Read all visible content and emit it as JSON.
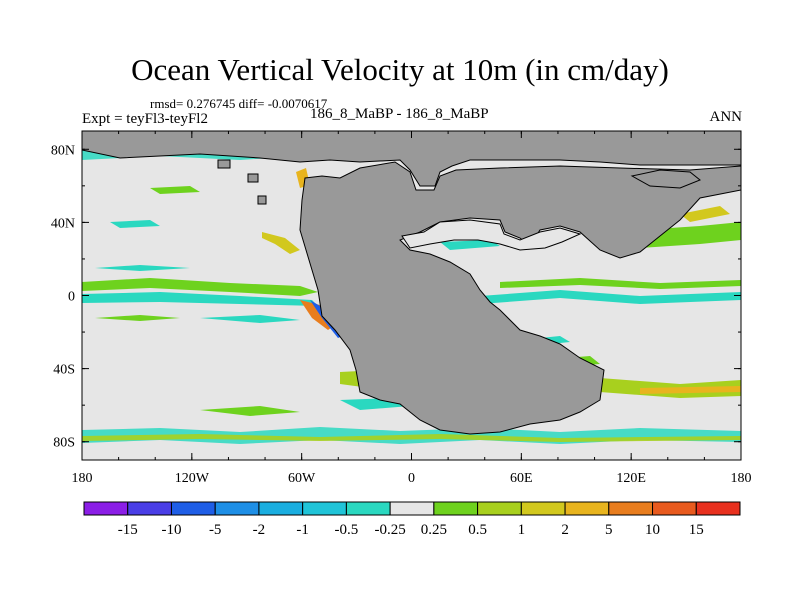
{
  "header": {
    "title": "Ocean Vertical Velocity at 10m (in cm/day)",
    "stats": "rmsd= 0.276745 diff= -0.0070617",
    "subtitle": "186_8_MaBP - 186_8_MaBP",
    "left_label": "Expt = teyFl3-teyFl2",
    "right_label": "ANN"
  },
  "map": {
    "x_ticks": [
      "180",
      "120W",
      "60W",
      "0",
      "60E",
      "120E",
      "180"
    ],
    "y_ticks": [
      "80N",
      "40N",
      "0",
      "40S",
      "80S"
    ],
    "land_color": "#999999",
    "background_color": "#e6e6e6"
  },
  "colorbar": {
    "labels": [
      "-15",
      "-10",
      "-5",
      "-2",
      "-1",
      "-0.5",
      "-0.25",
      "0.25",
      "0.5",
      "1",
      "2",
      "5",
      "10",
      "15"
    ],
    "colors": [
      "#8b1ee6",
      "#4a3ee6",
      "#1f5ee6",
      "#1e8fe6",
      "#1aaee0",
      "#20c4d8",
      "#2ad8c0",
      "#e6e6e6",
      "#6ed21e",
      "#a8d01e",
      "#d2c81e",
      "#e8b41e",
      "#e87d1e",
      "#e85a1e",
      "#e8301e"
    ]
  }
}
